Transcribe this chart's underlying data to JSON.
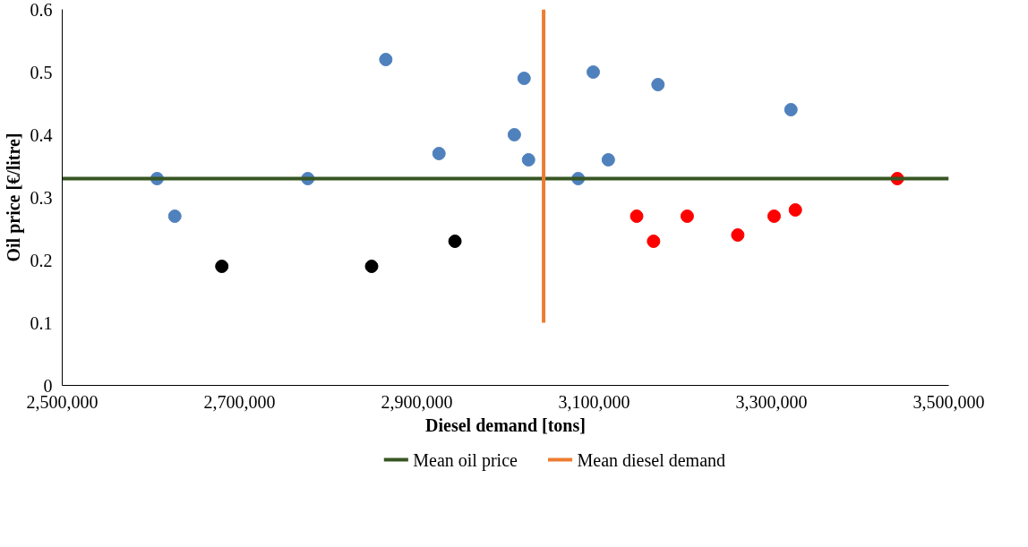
{
  "chart_data": {
    "type": "scatter",
    "xlabel": "Diesel demand [tons]",
    "ylabel": "Oil price [€/litre]",
    "xlim": [
      2500000,
      3500000
    ],
    "xticks": [
      {
        "value": 2500000,
        "label": "2,500,000"
      },
      {
        "value": 2700000,
        "label": "2,700,000"
      },
      {
        "value": 2900000,
        "label": "2,900,000"
      },
      {
        "value": 3100000,
        "label": "3,100,000"
      },
      {
        "value": 3300000,
        "label": "3,300,000"
      },
      {
        "value": 3500000,
        "label": "3,500,000"
      }
    ],
    "ylim": [
      0,
      0.6
    ],
    "yticks": [
      0,
      0.1,
      0.2,
      0.3,
      0.4,
      0.5,
      0.6
    ],
    "grid": false,
    "legend": "bottom",
    "series": [
      {
        "color": "#4f81bd",
        "x": [
          2607000,
          2627000,
          2777000,
          2865000,
          2925000,
          3010000,
          3021000,
          3026000,
          3082000,
          3099000,
          3116000,
          3172000,
          3322000
        ],
        "values": [
          0.33,
          0.27,
          0.33,
          0.52,
          0.37,
          0.4,
          0.49,
          0.36,
          0.33,
          0.5,
          0.36,
          0.48,
          0.44
        ]
      },
      {
        "color": "#000000",
        "x": [
          2680000,
          2849000,
          2943000
        ],
        "values": [
          0.19,
          0.19,
          0.23
        ]
      },
      {
        "color": "#ff0000",
        "x": [
          3148000,
          3167000,
          3205000,
          3262000,
          3303000,
          3327000,
          3442000
        ],
        "values": [
          0.27,
          0.23,
          0.27,
          0.24,
          0.27,
          0.28,
          0.33
        ]
      },
      {
        "type": "line",
        "name": "Mean oil price",
        "color": "#375623",
        "x": [
          2500000,
          3500000
        ],
        "values": [
          0.33,
          0.33
        ]
      },
      {
        "type": "line",
        "name": "Mean diesel demand",
        "color": "#ed7d31",
        "x": [
          3043000,
          3043000
        ],
        "values": [
          0.1,
          0.6
        ]
      }
    ]
  }
}
